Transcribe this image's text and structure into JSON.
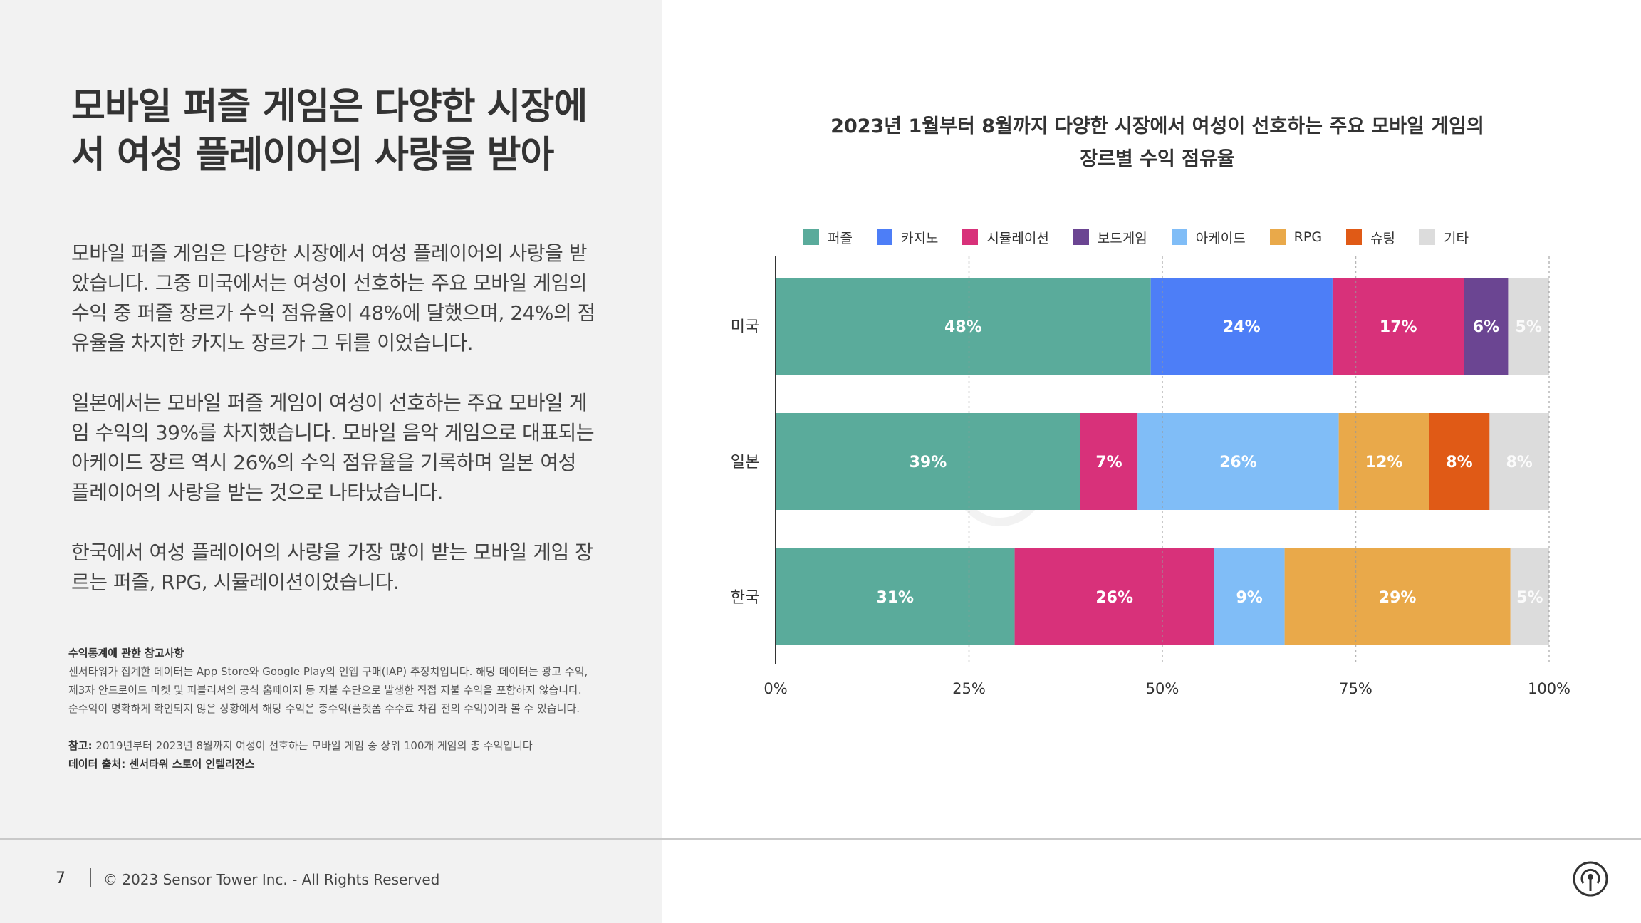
{
  "left": {
    "headline": "모바일 퍼즐 게임은 다양한 시장에서 여성 플레이어의 사랑을 받아",
    "paragraphs": [
      "모바일 퍼즐 게임은 다양한 시장에서 여성 플레이어의 사랑을 받았습니다. 그중 미국에서는 여성이 선호하는 주요 모바일 게임의 수익 중 퍼즐 장르가 수익 점유율이 48%에 달했으며, 24%의 점유율을 차지한 카지노 장르가 그 뒤를 이었습니다.",
      "일본에서는 모바일 퍼즐 게임이 여성이 선호하는 주요 모바일 게임 수익의 39%를 차지했습니다. 모바일 음악 게임으로 대표되는 아케이드 장르 역시 26%의 수익 점유율을 기록하며 일본 여성 플레이어의 사랑을 받는 것으로 나타났습니다.",
      "한국에서 여성 플레이어의 사랑을 가장 많이 받는 모바일 게임 장르는 퍼즐, RPG, 시뮬레이션이었습니다."
    ],
    "notes": {
      "heading": "수익통계에 관한 참고사항",
      "body": "센서타워가 집계한 데이터는 App Store와 Google Play의 인앱 구매(IAP) 추정치입니다. 해당 데이터는 광고 수익, 제3자 안드로이드 마켓 및 퍼블리셔의 공식 홈페이지 등 지불 수단으로 발생한 직접 지불 수익을 포함하지 않습니다. 순수익이 명확하게 확인되지 않은 상황에서 해당 수익은 총수익(플랫폼 수수료 차감 전의 수익)이라 볼 수 있습니다.",
      "ref_label": "참고:",
      "ref_text": " 2019년부터 2023년 8월까지 여성이 선호하는 모바일 게임 중 상위 100개 게임의 총 수익입니다",
      "source": "데이터 출처: 센서타워 스토어 인텔리전스"
    }
  },
  "footer": {
    "page_number": "7",
    "copyright": "© 2023 Sensor Tower Inc. - All Rights Reserved",
    "logo_icon": "sensor-tower-logo-icon"
  },
  "colors": {
    "panel_bg": "#f2f2f2",
    "puzzle": "#5aab9b",
    "casino": "#4d7ef7",
    "simulation": "#d8317a",
    "board": "#6b4592",
    "arcade": "#80bdf7",
    "rpg": "#e9a94a",
    "shooting": "#e05a16",
    "other": "#dcdcdc"
  },
  "chart_data": {
    "type": "bar",
    "orientation": "horizontal",
    "stacked": true,
    "title": "2023년 1월부터 8월까지 다양한 시장에서 여성이 선호하는 주요 모바일 게임의 장르별 수익 점유율",
    "title_lines": [
      "2023년 1월부터 8월까지 다양한 시장에서 여성이 선호하는 주요 모바일 게임의",
      "장르별 수익 점유율"
    ],
    "watermark": "SensorTower",
    "categories": [
      "미국",
      "일본",
      "한국"
    ],
    "xlim": [
      0,
      100
    ],
    "x_ticks": [
      "0%",
      "25%",
      "50%",
      "75%",
      "100%"
    ],
    "grid": "vertical dotted",
    "legend_position": "top",
    "legend": [
      {
        "name": "퍼즐",
        "color": "#5aab9b"
      },
      {
        "name": "카지노",
        "color": "#4d7ef7"
      },
      {
        "name": "시뮬레이션",
        "color": "#d8317a"
      },
      {
        "name": "보드게임",
        "color": "#6b4592"
      },
      {
        "name": "아케이드",
        "color": "#80bdf7"
      },
      {
        "name": "RPG",
        "color": "#e9a94a"
      },
      {
        "name": "슈팅",
        "color": "#e05a16"
      },
      {
        "name": "기타",
        "color": "#dcdcdc"
      }
    ],
    "bars": [
      {
        "category": "미국",
        "segments": [
          {
            "genre": "퍼즐",
            "value": 48.5,
            "label": "48%",
            "color": "#5aab9b"
          },
          {
            "genre": "카지노",
            "value": 23.5,
            "label": "24%",
            "color": "#4d7ef7"
          },
          {
            "genre": "시뮬레이션",
            "value": 17,
            "label": "17%",
            "color": "#d8317a"
          },
          {
            "genre": "보드게임",
            "value": 5.7,
            "label": "6%",
            "color": "#6b4592"
          },
          {
            "genre": "기타",
            "value": 5.3,
            "label": "5%",
            "color": "#dcdcdc"
          }
        ]
      },
      {
        "category": "일본",
        "segments": [
          {
            "genre": "퍼즐",
            "value": 39.4,
            "label": "39%",
            "color": "#5aab9b"
          },
          {
            "genre": "시뮬레이션",
            "value": 7.4,
            "label": "7%",
            "color": "#d8317a"
          },
          {
            "genre": "아케이드",
            "value": 26,
            "label": "26%",
            "color": "#80bdf7"
          },
          {
            "genre": "RPG",
            "value": 11.7,
            "label": "12%",
            "color": "#e9a94a"
          },
          {
            "genre": "슈팅",
            "value": 7.8,
            "label": "8%",
            "color": "#e05a16"
          },
          {
            "genre": "기타",
            "value": 7.7,
            "label": "8%",
            "color": "#dcdcdc"
          }
        ]
      },
      {
        "category": "한국",
        "segments": [
          {
            "genre": "퍼즐",
            "value": 30.9,
            "label": "31%",
            "color": "#5aab9b"
          },
          {
            "genre": "시뮬레이션",
            "value": 25.8,
            "label": "26%",
            "color": "#d8317a"
          },
          {
            "genre": "아케이드",
            "value": 9.1,
            "label": "9%",
            "color": "#80bdf7"
          },
          {
            "genre": "RPG",
            "value": 29.2,
            "label": "29%",
            "color": "#e9a94a"
          },
          {
            "genre": "기타",
            "value": 5,
            "label": "5%",
            "color": "#dcdcdc"
          }
        ]
      }
    ]
  }
}
